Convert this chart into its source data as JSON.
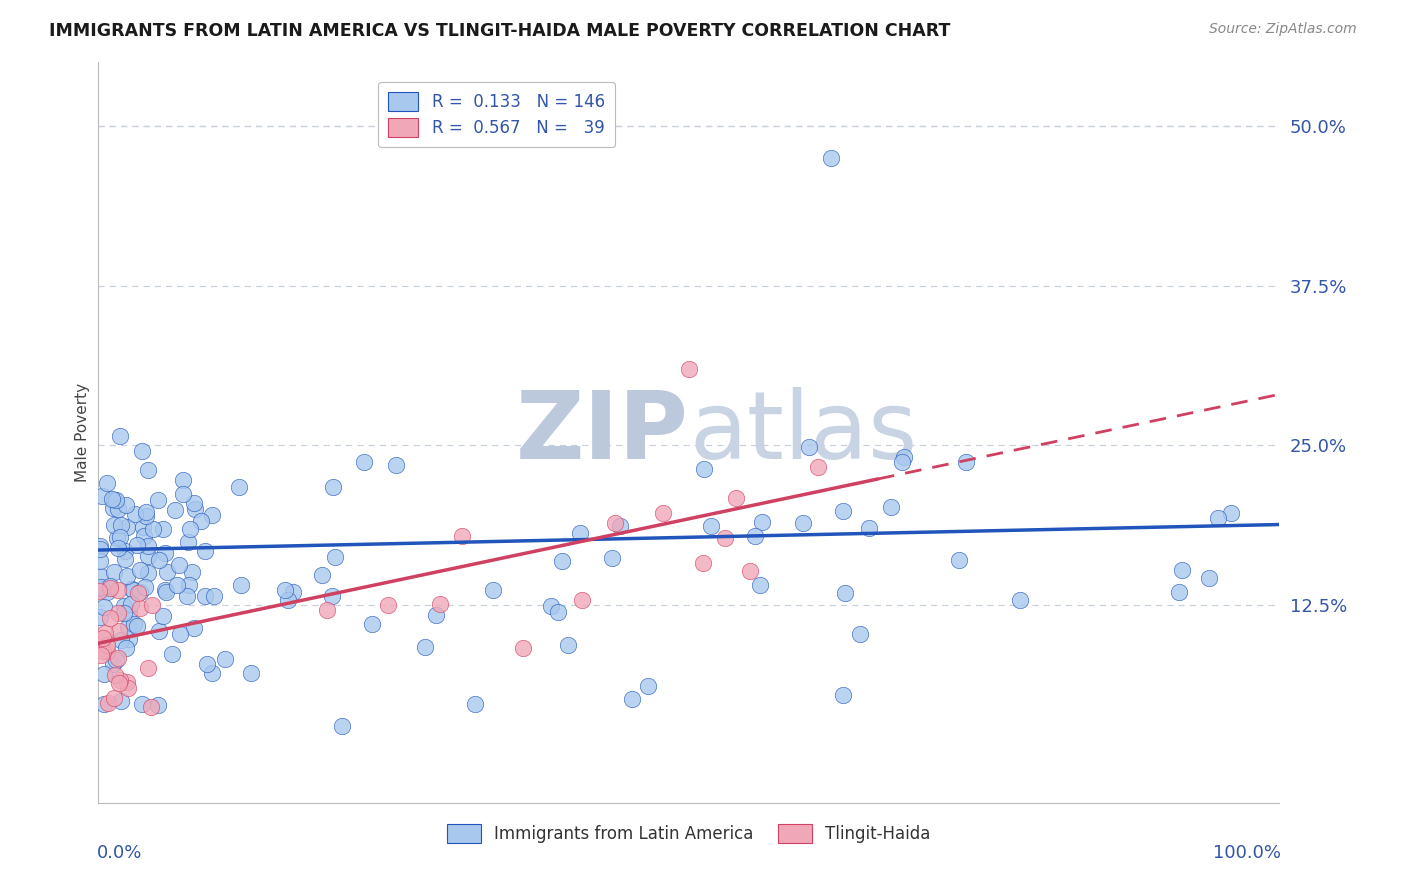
{
  "title": "IMMIGRANTS FROM LATIN AMERICA VS TLINGIT-HAIDA MALE POVERTY CORRELATION CHART",
  "source_text": "Source: ZipAtlas.com",
  "ylabel": "Male Poverty",
  "xlim": [
    0,
    1.0
  ],
  "ylim": [
    -0.03,
    0.55
  ],
  "yticks": [
    0.0,
    0.125,
    0.25,
    0.375,
    0.5
  ],
  "ytick_labels": [
    "",
    "12.5%",
    "25.0%",
    "37.5%",
    "50.0%"
  ],
  "color_blue": "#A8C8EE",
  "color_blue_dark": "#2255BB",
  "color_pink": "#F0A8B8",
  "color_pink_dark": "#D04060",
  "watermark_color": "#D8E0EC",
  "title_color": "#1A1A1A",
  "axis_label_color": "#3355AA",
  "grid_color": "#C8D0DC",
  "background_color": "#FFFFFF",
  "blue_intercept": 0.165,
  "blue_slope": 0.022,
  "pink_intercept": 0.095,
  "pink_slope": 0.195
}
